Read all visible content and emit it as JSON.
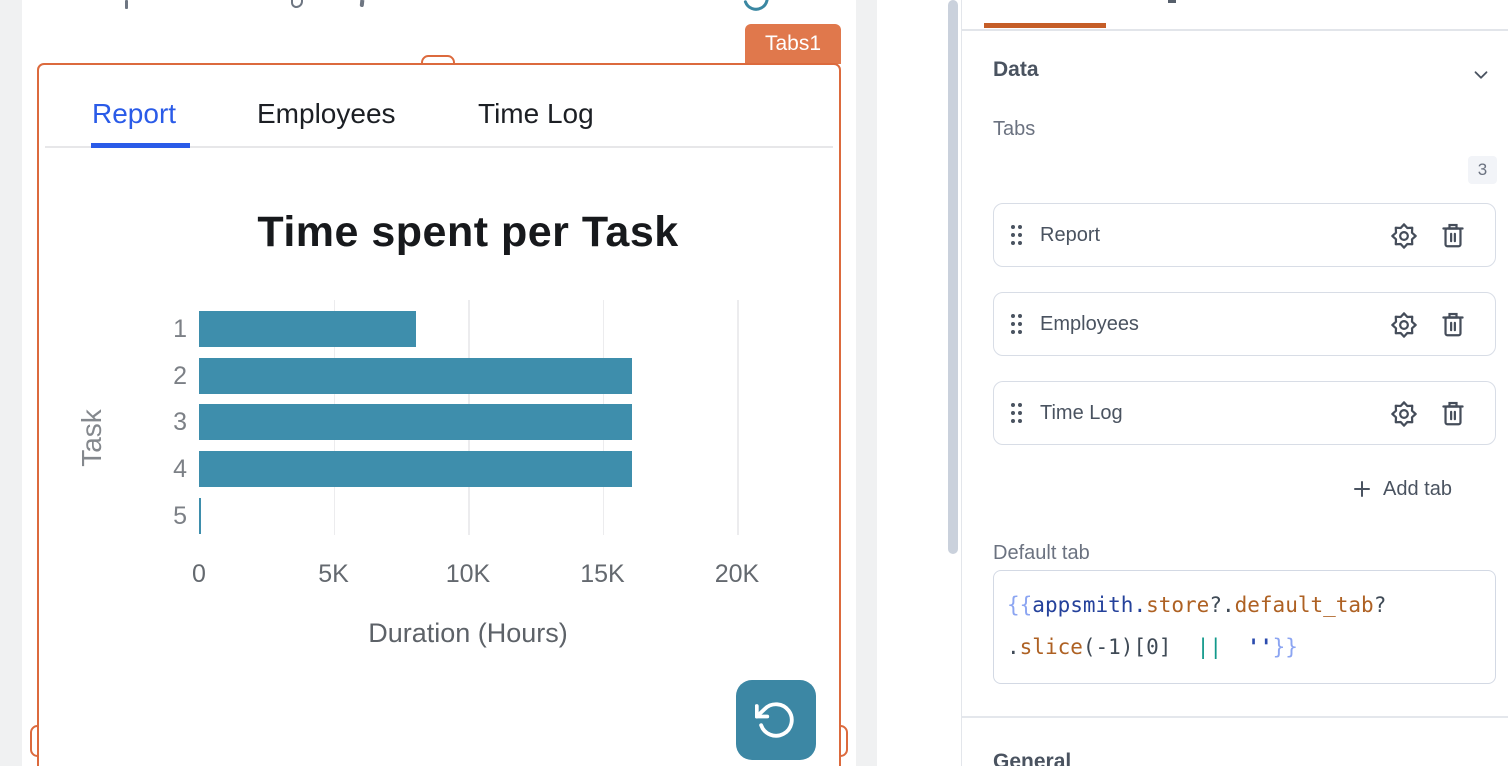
{
  "canvas": {
    "widget_name_badge": "Tabs1",
    "tabs": [
      "Report",
      "Employees",
      "Time Log"
    ],
    "active_tab": "Report"
  },
  "chart_data": {
    "type": "bar",
    "orientation": "horizontal",
    "title": "Time spent per Task",
    "xlabel": "Duration (Hours)",
    "ylabel": "Task",
    "categories": [
      "1",
      "2",
      "3",
      "4",
      "5"
    ],
    "values": [
      8060,
      16100,
      16100,
      16100,
      80
    ],
    "xlim": [
      0,
      20000
    ],
    "xticks": [
      {
        "value": 0,
        "label": "0"
      },
      {
        "value": 5000,
        "label": "5K"
      },
      {
        "value": 10000,
        "label": "10K"
      },
      {
        "value": 15000,
        "label": "15K"
      },
      {
        "value": 20000,
        "label": "20K"
      }
    ],
    "grid": true,
    "legend": false,
    "bar_color": "#3e8eac"
  },
  "panel": {
    "sections": {
      "data": "Data",
      "general": "General"
    },
    "tabs_field_label": "Tabs",
    "tabs_count": "3",
    "tab_items": [
      {
        "label": "Report"
      },
      {
        "label": "Employees"
      },
      {
        "label": "Time Log"
      }
    ],
    "add_tab_label": "Add tab",
    "default_tab_label": "Default tab",
    "default_tab_code": "{{appsmith.store?.default_tab?.slice(-1)[0] || ''}}",
    "code_tokens": [
      [
        {
          "t": "{{",
          "c": "brace"
        },
        {
          "t": "appsmith",
          "c": "navy"
        },
        {
          "t": ".",
          "c": "navy"
        },
        {
          "t": "store",
          "c": "orange"
        },
        {
          "t": "?.",
          "c": "plain"
        },
        {
          "t": "default_tab",
          "c": "orange"
        },
        {
          "t": "?",
          "c": "plain"
        }
      ],
      [
        {
          "t": ".",
          "c": "plain"
        },
        {
          "t": "slice",
          "c": "orange"
        },
        {
          "t": "(-1)[0]",
          "c": "plain"
        },
        {
          "t": "  ",
          "c": "plain"
        },
        {
          "t": "||",
          "c": "teal"
        },
        {
          "t": "  ",
          "c": "plain"
        },
        {
          "t": "''",
          "c": "string"
        },
        {
          "t": "}}",
          "c": "brace"
        }
      ]
    ]
  },
  "colors": {
    "selection_orange": "#dc6a3d",
    "badge_orange": "#e0784c",
    "active_tab_blue": "#2a5be8",
    "accent_teal": "#3c87a4",
    "panel_tab_underline": "#c55d27"
  }
}
